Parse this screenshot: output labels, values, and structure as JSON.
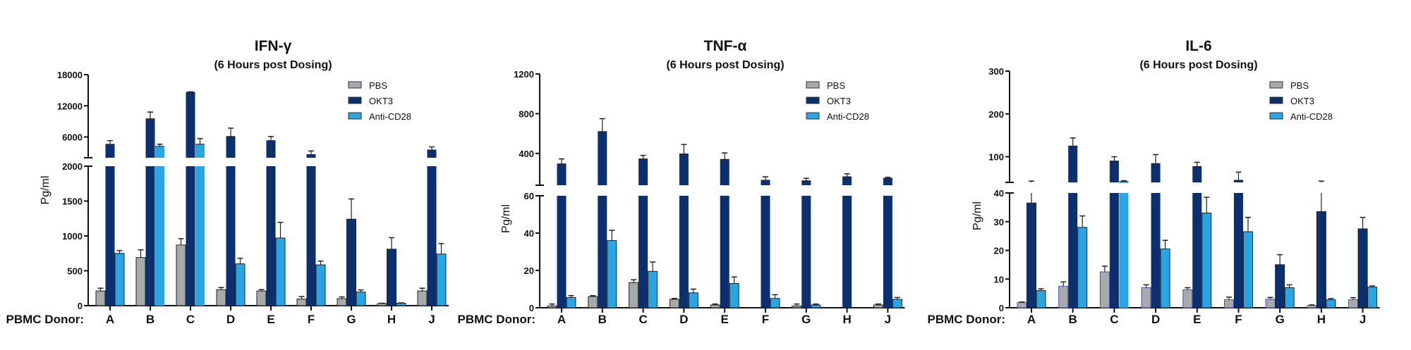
{
  "colors": {
    "PBS": "#a7aaac",
    "OKT3": "#0c2f6d",
    "Anti-CD28": "#29a5e4"
  },
  "chart_data": [
    {
      "type": "bar",
      "title": "IFN-γ",
      "subtitle": "(6 Hours post Dosing)",
      "ylabel": "Pg/ml",
      "xlabel": "PBMC Donor:",
      "categories": [
        "A",
        "B",
        "C",
        "D",
        "E",
        "F",
        "G",
        "H",
        "J"
      ],
      "axis_break": {
        "lower_range": [
          0,
          2000
        ],
        "upper_range": [
          2000,
          18000
        ]
      },
      "lower_ticks": [
        "0",
        "500",
        "1000",
        "1500",
        "2000"
      ],
      "upper_ticks": [
        "6000",
        "12000",
        "18000"
      ],
      "legend": [
        "PBS",
        "OKT3",
        "Anti-CD28"
      ],
      "legend_position": "top-right",
      "series": [
        {
          "name": "PBS",
          "values": [
            210,
            690,
            870,
            230,
            210,
            95,
            100,
            30,
            210
          ],
          "errors": [
            250,
            800,
            960,
            260,
            230,
            130,
            125,
            35,
            250
          ]
        },
        {
          "name": "OKT3",
          "values": [
            4600,
            9500,
            14600,
            6100,
            5300,
            2600,
            1240,
            810,
            3500
          ],
          "errors": [
            5300,
            10800,
            14700,
            7700,
            6100,
            3300,
            1530,
            975,
            4100
          ]
        },
        {
          "name": "Anti-CD28",
          "values": [
            750,
            4200,
            4600,
            600,
            970,
            585,
            195,
            35,
            740
          ],
          "errors": [
            790,
            4600,
            5700,
            680,
            1195,
            640,
            225,
            40,
            890
          ]
        }
      ]
    },
    {
      "type": "bar",
      "title": "TNF-α",
      "subtitle": "(6 Hours post Dosing)",
      "ylabel": "Pg/ml",
      "xlabel": "PBMC Donor:",
      "categories": [
        "A",
        "B",
        "C",
        "D",
        "E",
        "F",
        "G",
        "H",
        "J"
      ],
      "axis_break": {
        "lower_range": [
          0,
          60
        ],
        "upper_range": [
          80,
          1200
        ]
      },
      "lower_ticks": [
        "0",
        "20",
        "40",
        "60"
      ],
      "upper_ticks": [
        "400",
        "800",
        "1200"
      ],
      "legend": [
        "PBS",
        "OKT3",
        "Anti-CD28"
      ],
      "legend_position": "top-right",
      "series": [
        {
          "name": "PBS",
          "values": [
            1,
            6,
            13.5,
            4.5,
            1.5,
            0,
            1,
            0,
            1.5
          ],
          "errors": [
            2,
            6.5,
            15,
            5,
            2,
            0,
            2,
            0,
            2
          ]
        },
        {
          "name": "OKT3",
          "values": [
            295,
            620,
            345,
            395,
            340,
            130,
            125,
            165,
            150
          ],
          "errors": [
            345,
            750,
            380,
            490,
            405,
            165,
            150,
            195,
            160
          ]
        },
        {
          "name": "Anti-CD28",
          "values": [
            5.5,
            36,
            19.5,
            8,
            13,
            5,
            1.5,
            0,
            4.5
          ],
          "errors": [
            6.5,
            41.5,
            24.5,
            10,
            16.5,
            7,
            2,
            0,
            5.5
          ]
        }
      ]
    },
    {
      "type": "bar",
      "title": "IL-6",
      "subtitle": "(6 Hours post Dosing)",
      "ylabel": "Pg/ml",
      "xlabel": "PBMC Donor:",
      "categories": [
        "A",
        "B",
        "C",
        "D",
        "E",
        "F",
        "G",
        "H",
        "J"
      ],
      "axis_break": {
        "lower_range": [
          0,
          40
        ],
        "upper_range": [
          40,
          300
        ]
      },
      "lower_ticks": [
        "0",
        "10",
        "20",
        "30",
        "40"
      ],
      "upper_ticks": [
        "100",
        "200",
        "300"
      ],
      "legend": [
        "PBS",
        "OKT3",
        "Anti-CD28"
      ],
      "legend_position": "top-right",
      "series": [
        {
          "name": "PBS",
          "values": [
            1.8,
            7.5,
            12.5,
            7,
            6.3,
            2.8,
            3,
            0.8,
            2.8
          ],
          "errors": [
            2,
            9,
            14.5,
            8,
            7,
            3.7,
            3.6,
            1,
            3.5
          ]
        },
        {
          "name": "OKT3",
          "values": [
            36.5,
            125,
            90,
            84,
            77,
            45,
            15,
            33.5,
            27.5
          ],
          "errors": [
            43,
            144,
            100,
            105,
            87,
            64,
            18.5,
            43,
            31.5
          ]
        },
        {
          "name": "Anti-CD28",
          "values": [
            6,
            28,
            42,
            20.5,
            33,
            26.5,
            7,
            2.8,
            7.2
          ],
          "errors": [
            6.6,
            32,
            44,
            23.5,
            38.5,
            31.5,
            8,
            3.2,
            7.6
          ]
        }
      ]
    }
  ]
}
